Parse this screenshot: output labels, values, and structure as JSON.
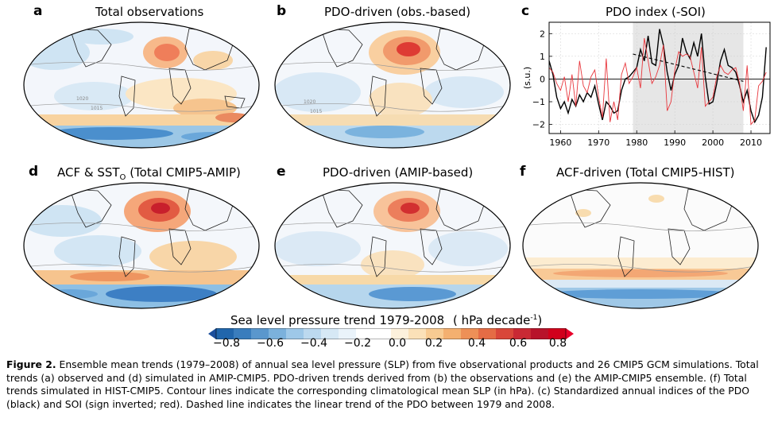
{
  "panels": {
    "a": {
      "letter": "a",
      "title": "Total observations"
    },
    "b": {
      "letter": "b",
      "title": "PDO-driven (obs.-based)"
    },
    "c": {
      "letter": "c",
      "title": "PDO index (-SOI)"
    },
    "d": {
      "letter": "d",
      "title_pre": "ACF & SST",
      "title_sub": "O",
      "title_post": " (Total CMIP5-AMIP)"
    },
    "e": {
      "letter": "e",
      "title": "PDO-driven (AMIP-based)"
    },
    "f": {
      "letter": "f",
      "title": "ACF-driven (Total CMIP5-HIST)"
    }
  },
  "contour_labels": [
    "1020",
    "1015",
    "1020",
    "1015"
  ],
  "colorbar": {
    "title_main": "Sea level pressure trend 1979-2008",
    "title_units_pre": "( hPa decade",
    "title_units_sup": "-1",
    "title_units_post": ")",
    "ticks": [
      "−0.8",
      "−0.6",
      "−0.4",
      "−0.2",
      "0.0",
      "0.2",
      "0.4",
      "0.6",
      "0.8"
    ]
  },
  "caption": {
    "label": "Figure 2.",
    "text": " Ensemble mean trends (1979–2008) of annual sea level pressure (SLP) from five observational products and 26 CMIP5 GCM simulations. Total trends (a) observed and (d) simulated in AMIP-CMIP5. PDO-driven trends derived from (b) the observations and (e) the AMIP-CMIP5 ensemble. (f) Total trends simulated in HIST-CMIP5. Contour lines indicate the corresponding climatological mean SLP (in hPa). (c) Standardized annual indices of the PDO (black) and SOI (sign inverted; red). Dashed line indicates the linear trend of the PDO between 1979 and 2008."
  },
  "chart_data": {
    "type": "line",
    "title": "PDO index (-SOI)",
    "xlabel": "",
    "ylabel": "(s.u.)",
    "xlim": [
      1957,
      2015
    ],
    "ylim": [
      -2.4,
      2.5
    ],
    "xticks": [
      1960,
      1970,
      1980,
      1990,
      2000,
      2010
    ],
    "yticks": [
      2,
      1,
      0,
      -1,
      -2
    ],
    "shaded_period": [
      1979,
      2008
    ],
    "series": [
      {
        "name": "PDO",
        "color": "#000000",
        "x": [
          1957,
          1958,
          1959,
          1960,
          1961,
          1962,
          1963,
          1964,
          1965,
          1966,
          1967,
          1968,
          1969,
          1970,
          1971,
          1972,
          1973,
          1974,
          1975,
          1976,
          1977,
          1978,
          1979,
          1980,
          1981,
          1982,
          1983,
          1984,
          1985,
          1986,
          1987,
          1988,
          1989,
          1990,
          1991,
          1992,
          1993,
          1994,
          1995,
          1996,
          1997,
          1998,
          1999,
          2000,
          2001,
          2002,
          2003,
          2004,
          2005,
          2006,
          2007,
          2008,
          2009,
          2010,
          2011,
          2012,
          2013,
          2014
        ],
        "values": [
          0.8,
          0.2,
          -0.8,
          -1.3,
          -1.0,
          -1.5,
          -0.9,
          -1.2,
          -0.7,
          -1.0,
          -0.6,
          -0.8,
          -0.3,
          -1.1,
          -1.8,
          -1.0,
          -1.2,
          -1.5,
          -1.4,
          -0.5,
          0.0,
          0.1,
          0.3,
          0.5,
          1.3,
          0.8,
          1.9,
          0.7,
          0.6,
          2.2,
          1.5,
          0.3,
          -0.5,
          0.2,
          0.6,
          1.8,
          1.2,
          0.9,
          1.6,
          1.0,
          2.0,
          0.1,
          -1.1,
          -1.0,
          -0.2,
          0.8,
          1.3,
          0.6,
          0.5,
          0.3,
          -0.3,
          -1.0,
          -0.5,
          -1.4,
          -1.9,
          -1.6,
          -0.8,
          1.4
        ]
      },
      {
        "name": "SOI (sign inverted)",
        "color": "#e8363c",
        "x": [
          1957,
          1958,
          1959,
          1960,
          1961,
          1962,
          1963,
          1964,
          1965,
          1966,
          1967,
          1968,
          1969,
          1970,
          1971,
          1972,
          1973,
          1974,
          1975,
          1976,
          1977,
          1978,
          1979,
          1980,
          1981,
          1982,
          1983,
          1984,
          1985,
          1986,
          1987,
          1988,
          1989,
          1990,
          1991,
          1992,
          1993,
          1994,
          1995,
          1996,
          1997,
          1998,
          1999,
          2000,
          2001,
          2002,
          2003,
          2004,
          2005,
          2006,
          2007,
          2008,
          2009,
          2010,
          2011,
          2012,
          2013,
          2014
        ],
        "values": [
          0.5,
          0.3,
          -0.2,
          -0.5,
          0.1,
          -1.0,
          0.2,
          -1.2,
          0.8,
          -0.3,
          -0.6,
          0.1,
          0.4,
          -0.8,
          -1.7,
          0.9,
          -1.9,
          -1.0,
          -1.8,
          0.2,
          0.7,
          -0.2,
          0.1,
          0.5,
          -0.4,
          1.8,
          0.8,
          -0.2,
          0.1,
          0.6,
          1.5,
          -1.4,
          -1.0,
          0.4,
          1.2,
          1.0,
          1.1,
          1.0,
          0.3,
          -0.4,
          1.4,
          -1.2,
          -1.0,
          -0.8,
          0.1,
          0.6,
          0.3,
          0.2,
          0.4,
          0.5,
          -0.2,
          -1.4,
          0.6,
          -2.0,
          -1.8,
          -0.3,
          -0.1,
          0.3
        ]
      },
      {
        "name": "PDO trend 1979-2008",
        "color": "#000000",
        "dashed": true,
        "x": [
          1979,
          2008
        ],
        "values": [
          1.1,
          -0.1
        ]
      }
    ]
  }
}
